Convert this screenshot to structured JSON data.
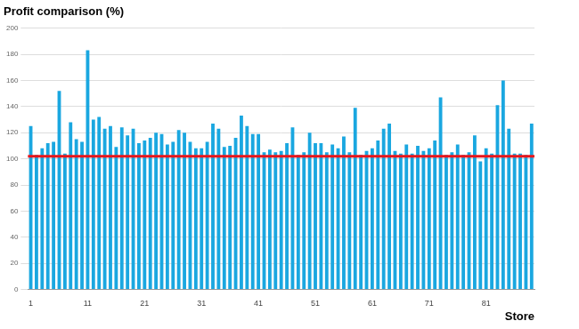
{
  "chart_data": {
    "type": "bar",
    "title": "Profit comparison (%)",
    "x_label": "Store",
    "categories": [
      "1",
      null,
      null,
      null,
      null,
      null,
      null,
      null,
      null,
      null,
      "11",
      null,
      null,
      null,
      null,
      null,
      null,
      null,
      null,
      null,
      "21",
      null,
      null,
      null,
      null,
      null,
      null,
      null,
      null,
      null,
      "31",
      null,
      null,
      null,
      null,
      null,
      null,
      null,
      null,
      null,
      "41",
      null,
      null,
      null,
      null,
      null,
      null,
      null,
      null,
      null,
      "51",
      null,
      null,
      null,
      null,
      null,
      null,
      null,
      null,
      null,
      "61",
      null,
      null,
      null,
      null,
      null,
      null,
      null,
      null,
      null,
      "71",
      null,
      null,
      null,
      null,
      null,
      null,
      null,
      null,
      null,
      "81",
      null,
      null,
      null,
      null,
      null,
      null,
      null,
      null
    ],
    "values": [
      125,
      103,
      108,
      112,
      113,
      152,
      104,
      128,
      115,
      113,
      183,
      130,
      132,
      123,
      125,
      109,
      124,
      118,
      123,
      112,
      114,
      116,
      120,
      119,
      111,
      113,
      122,
      120,
      113,
      108,
      108,
      113,
      127,
      123,
      109,
      110,
      116,
      133,
      125,
      119,
      119,
      105,
      107,
      105,
      106,
      112,
      124,
      103,
      105,
      120,
      112,
      112,
      105,
      111,
      108,
      117,
      105,
      139,
      103,
      106,
      108,
      114,
      123,
      127,
      106,
      104,
      111,
      104,
      110,
      106,
      108,
      114,
      147,
      103,
      105,
      111,
      103,
      105,
      118,
      98,
      108,
      104,
      141,
      160,
      123,
      104,
      104,
      103,
      127
    ],
    "reference_line": 102,
    "color": "#1aa7e0",
    "ylim": [
      0,
      200
    ],
    "yticks": [
      0,
      20,
      40,
      60,
      80,
      100,
      120,
      140,
      160,
      180,
      200
    ],
    "grid": true
  }
}
